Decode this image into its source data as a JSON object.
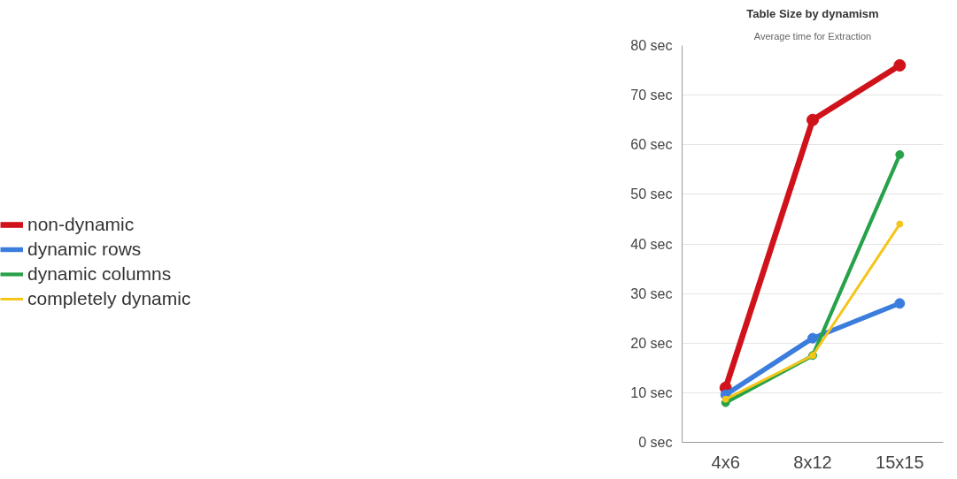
{
  "chart_data": {
    "type": "line",
    "title": "Table Size by dynamism",
    "subtitle": "Average time for Extraction",
    "categories": [
      "4x6",
      "8x12",
      "15x15"
    ],
    "series": [
      {
        "name": "non-dynamic",
        "color": "#d0121b",
        "values": [
          11,
          65,
          76
        ]
      },
      {
        "name": "dynamic rows",
        "color": "#3b7ddd",
        "values": [
          9.6,
          21,
          28
        ]
      },
      {
        "name": "dynamic columns",
        "color": "#27a24a",
        "values": [
          8,
          17.5,
          58
        ]
      },
      {
        "name": "completely dynamic",
        "color": "#f5c518",
        "values": [
          8.7,
          17.5,
          44
        ]
      }
    ],
    "ylim": [
      0,
      80
    ],
    "yticks": [
      {
        "value": 0,
        "label": "0 sec"
      },
      {
        "value": 10,
        "label": "10 sec"
      },
      {
        "value": 20,
        "label": "20 sec"
      },
      {
        "value": 30,
        "label": "30 sec"
      },
      {
        "value": 40,
        "label": "40 sec"
      },
      {
        "value": 50,
        "label": "50 sec"
      },
      {
        "value": 60,
        "label": "60 sec"
      },
      {
        "value": 70,
        "label": "70 sec"
      },
      {
        "value": 80,
        "label": "80 sec"
      }
    ],
    "grid": "y",
    "legend": "left",
    "marker": "circle",
    "line_style": "solid"
  }
}
